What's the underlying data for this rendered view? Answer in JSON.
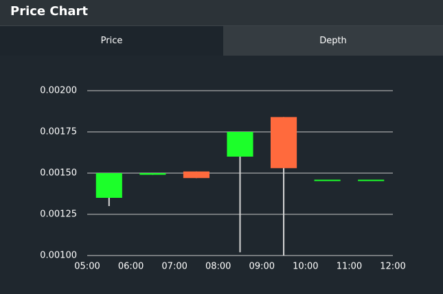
{
  "header": {
    "title": "Price Chart"
  },
  "tabs": [
    "Price",
    "Depth"
  ],
  "chart_data": {
    "type": "candlestick",
    "x": [
      5.5,
      6.5,
      7.5,
      8.5,
      9.5,
      10.5,
      11.5
    ],
    "open": [
      0.00135,
      0.00149,
      0.00151,
      0.0016,
      0.00184,
      0.00146,
      0.00146
    ],
    "high": [
      0.0015,
      0.0015,
      0.00151,
      0.00175,
      0.00184,
      0.00146,
      0.00146
    ],
    "low": [
      0.0013,
      0.00149,
      0.00147,
      0.00102,
      0.001,
      0.00146,
      0.00146
    ],
    "close": [
      0.0015,
      0.0015,
      0.00147,
      0.00175,
      0.00153,
      0.00146,
      0.00146
    ],
    "up_color": "#1cff2a",
    "down_color": "#ff6a3d",
    "wick_color": "#d8d8d8",
    "xlim": [
      5,
      12
    ],
    "xticks": [
      {
        "value": 5,
        "label": "05:00"
      },
      {
        "value": 6,
        "label": "06:00"
      },
      {
        "value": 7,
        "label": "07:00"
      },
      {
        "value": 8,
        "label": "08:00"
      },
      {
        "value": 9,
        "label": "09:00"
      },
      {
        "value": 10,
        "label": "10:00"
      },
      {
        "value": 11,
        "label": "11:00"
      },
      {
        "value": 12,
        "label": "12:00"
      }
    ],
    "ylim": [
      0.001,
      0.002
    ],
    "yticks": [
      {
        "value": 0.001,
        "label": "0.00100"
      },
      {
        "value": 0.00125,
        "label": "0.00125"
      },
      {
        "value": 0.0015,
        "label": "0.00150"
      },
      {
        "value": 0.00175,
        "label": "0.00175"
      },
      {
        "value": 0.002,
        "label": "0.00200"
      }
    ],
    "grid": true
  }
}
